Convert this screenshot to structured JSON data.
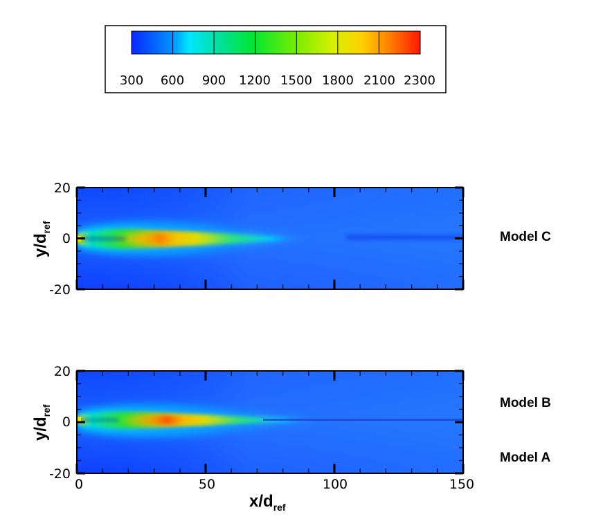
{
  "chart_data": [
    {
      "type": "heatmap",
      "panel": "top",
      "ylabel": "y/d",
      "ylabel_sub": "ref",
      "xlim": [
        0,
        150
      ],
      "ylim": [
        -20,
        20
      ],
      "yticks": [
        "20",
        "0",
        "-20"
      ],
      "right_labels": [
        "Model C"
      ],
      "field": {
        "description_peak_x": 40,
        "jet_half_width_x": [
          [
            0,
            1.5
          ],
          [
            10,
            3
          ],
          [
            20,
            3.2
          ],
          [
            35,
            2.8
          ],
          [
            60,
            1.8
          ],
          [
            90,
            0.6
          ]
        ],
        "peak_temperature": 2000,
        "ambient_temperature": 300
      }
    },
    {
      "type": "heatmap",
      "panel": "bottom",
      "ylabel": "y/d",
      "ylabel_sub": "ref",
      "xlabel": "x/d",
      "xlabel_sub": "ref",
      "xlim": [
        0,
        150
      ],
      "ylim": [
        -20,
        20
      ],
      "xticks": [
        "0",
        "50",
        "100",
        "150"
      ],
      "yticks": [
        "20",
        "0",
        "-20"
      ],
      "right_labels": [
        "Model B",
        "Model A"
      ],
      "field": {
        "description_peak_x": 42,
        "jet_half_width_x": [
          [
            0,
            1.5
          ],
          [
            10,
            3.2
          ],
          [
            20,
            3.5
          ],
          [
            35,
            3.0
          ],
          [
            60,
            2.0
          ],
          [
            90,
            0.5
          ]
        ],
        "peak_temperature": 2100,
        "ambient_temperature": 300
      }
    }
  ],
  "colorbar": {
    "ticks": [
      "300",
      "600",
      "900",
      "1200",
      "1500",
      "1800",
      "2100",
      "2300"
    ],
    "colors": [
      "#0a32ff",
      "#00c8ff",
      "#00e8a0",
      "#00e632",
      "#a8f000",
      "#ffd800",
      "#ff8000",
      "#ff1a00"
    ]
  }
}
